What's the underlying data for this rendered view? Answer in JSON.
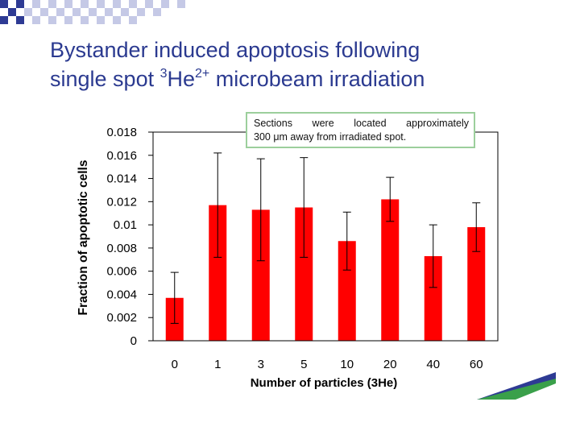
{
  "slide": {
    "title_line1": "Bystander induced apoptosis following",
    "title_line2_pre": "single spot ",
    "title_sup1": "3",
    "title_mid": "He",
    "title_sup2": "2+",
    "title_line2_post": " microbeam irradiation"
  },
  "note": {
    "line1": "Sections were located approximately",
    "line2": "300 μm away from irradiated spot."
  },
  "colors": {
    "title": "#2b3a90",
    "bar": "#ff0000",
    "note_border": "#9ccf9c",
    "decor_blue": "#2e3b94",
    "decor_green": "#3aa04a"
  },
  "chart_data": {
    "type": "bar",
    "categories": [
      "0",
      "1",
      "3",
      "5",
      "10",
      "20",
      "40",
      "60"
    ],
    "values": [
      0.0037,
      0.0117,
      0.0113,
      0.0115,
      0.0086,
      0.0122,
      0.0073,
      0.0098
    ],
    "error": [
      0.0022,
      0.0045,
      0.0044,
      0.0043,
      0.0025,
      0.0019,
      0.0027,
      0.0021
    ],
    "xlabel": "Number of particles (3He)",
    "ylabel": "Fraction of apoptotic cells",
    "ylim": [
      0,
      0.018
    ],
    "yticks": [
      "0",
      "0.002",
      "0.004",
      "0.006",
      "0.008",
      "0.01",
      "0.012",
      "0.014",
      "0.016",
      "0.018"
    ],
    "grid": false
  }
}
